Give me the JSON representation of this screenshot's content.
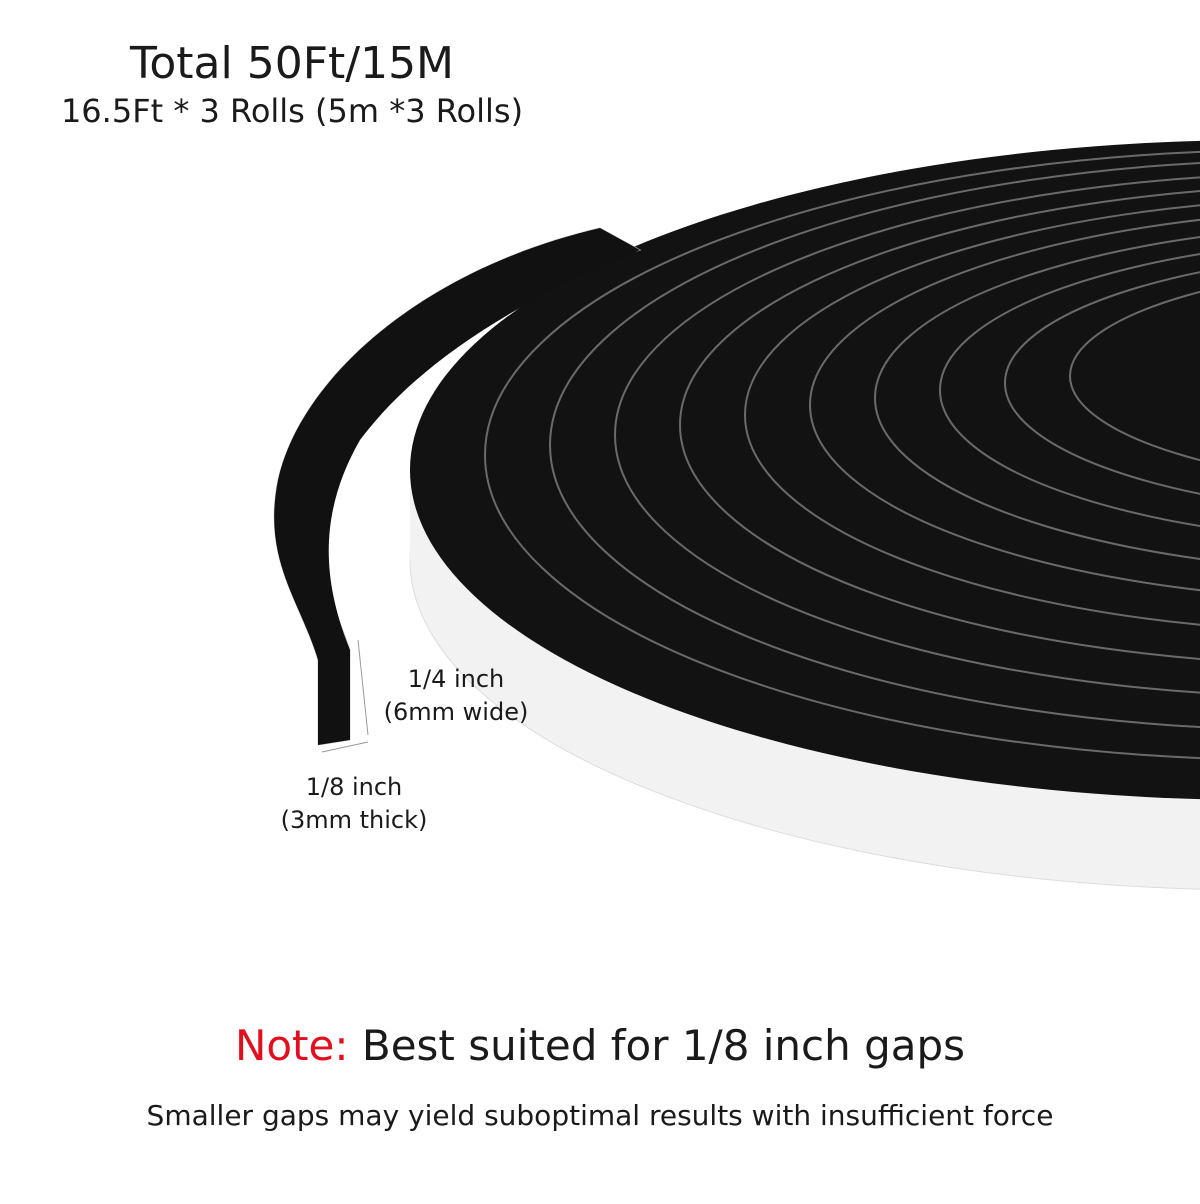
{
  "header": {
    "title": "Total 50Ft/15M",
    "subtitle": "16.5Ft * 3 Rolls (5m *3 Rolls)"
  },
  "dimensions": {
    "width_label": "1/4 inch",
    "width_detail": "(6mm wide)",
    "thickness_label": "1/8 inch",
    "thickness_detail": "(3mm thick)"
  },
  "note": {
    "label": "Note:",
    "text": "Best suited for 1/8 inch gaps"
  },
  "footer": {
    "text": "Smaller gaps may yield suboptimal results with insufficient force"
  }
}
